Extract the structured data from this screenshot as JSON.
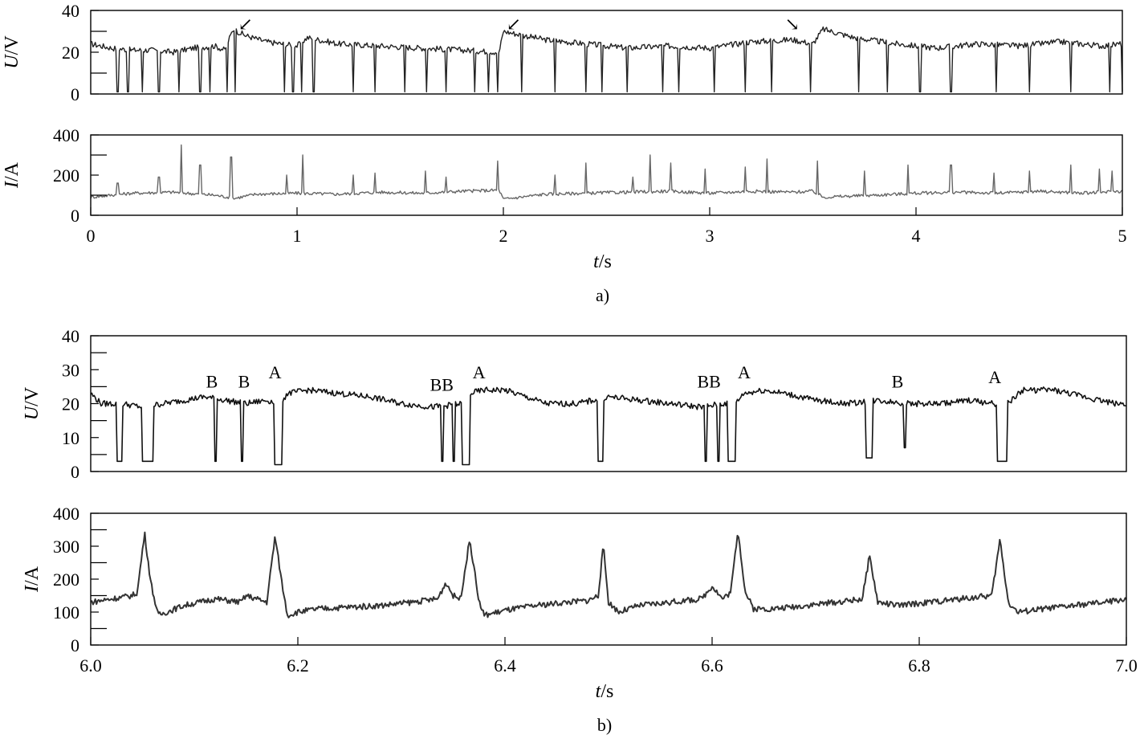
{
  "chart_data": [
    {
      "panel": "a",
      "type": "line",
      "ylabel_prefix": "U",
      "ylabel_suffix": "/V",
      "xlim": [
        0,
        5
      ],
      "ylim": [
        0,
        40
      ],
      "yticks": [
        "0",
        "20",
        "40"
      ],
      "color": "#222222",
      "series": [
        {
          "x": [
            0,
            0.1,
            0.2,
            0.3,
            0.4,
            0.5,
            0.6,
            0.65,
            0.69,
            0.75,
            0.85,
            1.0,
            1.05,
            1.2,
            1.4,
            1.6,
            1.8,
            1.98,
            2.0,
            2.2,
            2.4,
            2.6,
            2.8,
            3.0,
            3.2,
            3.4,
            3.5,
            3.55,
            3.7,
            3.9,
            4.1,
            4.3,
            4.5,
            4.7,
            4.9,
            5.0
          ],
          "y": [
            24,
            22,
            21,
            21,
            20,
            22,
            23,
            21,
            31,
            28,
            25,
            23,
            27,
            24,
            23,
            22,
            21,
            20,
            30,
            26,
            24,
            22,
            23,
            22,
            25,
            26,
            24,
            31,
            27,
            24,
            22,
            24,
            23,
            25,
            23,
            24
          ]
        }
      ],
      "dips_x": [
        0.13,
        0.18,
        0.25,
        0.33,
        0.43,
        0.53,
        0.58,
        0.66,
        0.7,
        0.98,
        1.02,
        0.94,
        1.08,
        1.27,
        1.38,
        1.52,
        1.63,
        1.72,
        1.86,
        1.93,
        1.97,
        2.09,
        2.25,
        2.4,
        2.48,
        2.6,
        2.77,
        2.85,
        3.02,
        3.17,
        3.3,
        3.49,
        3.72,
        3.86,
        4.02,
        4.17,
        4.39,
        4.55,
        4.75,
        4.94,
        5.0
      ],
      "annotations": [
        {
          "text": "↙",
          "x": 0.75,
          "y": 36
        },
        {
          "text": "↙",
          "x": 2.05,
          "y": 36
        },
        {
          "text": "↘",
          "x": 3.4,
          "y": 36
        }
      ]
    },
    {
      "panel": "a",
      "type": "line",
      "ylabel_prefix": "I",
      "ylabel_suffix": "/A",
      "xlim": [
        0,
        5
      ],
      "ylim": [
        0,
        400
      ],
      "yticks": [
        "0",
        "200",
        "400"
      ],
      "xticks": [
        "0",
        "1",
        "2",
        "3",
        "4",
        "5"
      ],
      "xlabel_prefix": "t",
      "xlabel_suffix": "/s",
      "caption": "a)",
      "color": "#666666",
      "series": [
        {
          "x": [
            0,
            0.2,
            0.4,
            0.6,
            0.7,
            0.8,
            1.0,
            1.2,
            1.4,
            1.6,
            1.8,
            1.98,
            2.0,
            2.2,
            2.4,
            2.6,
            2.8,
            3.0,
            3.2,
            3.4,
            3.5,
            3.55,
            3.8,
            4.0,
            4.2,
            4.4,
            4.6,
            4.8,
            5.0
          ],
          "y": [
            90,
            110,
            115,
            100,
            85,
            105,
            110,
            105,
            115,
            110,
            120,
            125,
            80,
            105,
            110,
            115,
            120,
            110,
            120,
            115,
            120,
            90,
            100,
            110,
            115,
            110,
            120,
            110,
            120
          ]
        }
      ],
      "spikes": [
        {
          "x": 0.13,
          "y": 160
        },
        {
          "x": 0.33,
          "y": 190
        },
        {
          "x": 0.44,
          "y": 350
        },
        {
          "x": 0.53,
          "y": 250
        },
        {
          "x": 0.68,
          "y": 290
        },
        {
          "x": 0.95,
          "y": 200
        },
        {
          "x": 1.03,
          "y": 300
        },
        {
          "x": 1.27,
          "y": 200
        },
        {
          "x": 1.38,
          "y": 210
        },
        {
          "x": 1.62,
          "y": 220
        },
        {
          "x": 1.72,
          "y": 190
        },
        {
          "x": 1.97,
          "y": 270
        },
        {
          "x": 2.25,
          "y": 200
        },
        {
          "x": 2.4,
          "y": 260
        },
        {
          "x": 2.63,
          "y": 190
        },
        {
          "x": 2.71,
          "y": 300
        },
        {
          "x": 2.81,
          "y": 260
        },
        {
          "x": 2.98,
          "y": 230
        },
        {
          "x": 3.17,
          "y": 240
        },
        {
          "x": 3.28,
          "y": 280
        },
        {
          "x": 3.52,
          "y": 270
        },
        {
          "x": 3.75,
          "y": 220
        },
        {
          "x": 3.96,
          "y": 250
        },
        {
          "x": 4.17,
          "y": 250
        },
        {
          "x": 4.38,
          "y": 210
        },
        {
          "x": 4.55,
          "y": 220
        },
        {
          "x": 4.75,
          "y": 250
        },
        {
          "x": 4.89,
          "y": 230
        },
        {
          "x": 4.95,
          "y": 220
        }
      ]
    },
    {
      "panel": "b",
      "type": "line",
      "ylabel_prefix": "U",
      "ylabel_suffix": "/V",
      "xlim": [
        6.0,
        7.0
      ],
      "ylim": [
        0,
        40
      ],
      "yticks": [
        "0",
        "10",
        "20",
        "30",
        "40"
      ],
      "color": "#111111",
      "series": [
        {
          "x": [
            6.0,
            6.01,
            6.03,
            6.05,
            6.07,
            6.09,
            6.11,
            6.13,
            6.15,
            6.17,
            6.183,
            6.19,
            6.21,
            6.24,
            6.27,
            6.3,
            6.33,
            6.36,
            6.366,
            6.38,
            6.4,
            6.42,
            6.44,
            6.47,
            6.5,
            6.53,
            6.56,
            6.59,
            6.61,
            6.623,
            6.63,
            6.65,
            6.67,
            6.7,
            6.73,
            6.76,
            6.79,
            6.82,
            6.85,
            6.87,
            6.885,
            6.9,
            6.93,
            6.96,
            6.99,
            7.0
          ],
          "y": [
            23,
            20,
            20,
            19,
            20,
            21,
            22,
            21,
            20,
            21,
            20,
            23,
            24,
            23,
            22,
            20,
            19,
            20,
            23,
            24,
            24,
            22,
            20,
            20,
            22,
            21,
            20,
            19,
            20,
            20,
            23,
            24,
            23,
            21,
            20,
            21,
            20,
            20,
            21,
            20,
            20,
            24,
            24,
            22,
            20,
            20
          ]
        }
      ],
      "dips": [
        {
          "x0": 6.025,
          "x1": 6.03,
          "y": 3
        },
        {
          "x0": 6.05,
          "x1": 6.06,
          "y": 3
        },
        {
          "x0": 6.12,
          "x1": 6.122,
          "y": 3
        },
        {
          "x0": 6.145,
          "x1": 6.147,
          "y": 3
        },
        {
          "x0": 6.177,
          "x1": 6.185,
          "y": 2
        },
        {
          "x0": 6.338,
          "x1": 6.34,
          "y": 3
        },
        {
          "x0": 6.35,
          "x1": 6.352,
          "y": 3
        },
        {
          "x0": 6.358,
          "x1": 6.366,
          "y": 2
        },
        {
          "x0": 6.49,
          "x1": 6.495,
          "y": 3
        },
        {
          "x0": 6.593,
          "x1": 6.595,
          "y": 3
        },
        {
          "x0": 6.605,
          "x1": 6.607,
          "y": 3
        },
        {
          "x0": 6.615,
          "x1": 6.623,
          "y": 3
        },
        {
          "x0": 6.748,
          "x1": 6.755,
          "y": 4
        },
        {
          "x0": 6.785,
          "x1": 6.787,
          "y": 7
        },
        {
          "x0": 6.875,
          "x1": 6.885,
          "y": 3
        }
      ],
      "annotations": [
        {
          "text": "B",
          "x": 6.117,
          "y": 24.7
        },
        {
          "text": "B",
          "x": 6.148,
          "y": 24.7
        },
        {
          "text": "A",
          "x": 6.178,
          "y": 27.4
        },
        {
          "text": "BB",
          "x": 6.339,
          "y": 23.8
        },
        {
          "text": "A",
          "x": 6.375,
          "y": 27.4
        },
        {
          "text": "BB",
          "x": 6.597,
          "y": 24.7
        },
        {
          "text": "A",
          "x": 6.631,
          "y": 27.4
        },
        {
          "text": "B",
          "x": 6.779,
          "y": 24.7
        },
        {
          "text": "A",
          "x": 6.873,
          "y": 26.0
        }
      ]
    },
    {
      "panel": "b",
      "type": "line",
      "ylabel_prefix": "I",
      "ylabel_suffix": "/A",
      "xlim": [
        6.0,
        7.0
      ],
      "ylim": [
        0,
        400
      ],
      "yticks": [
        "0",
        "100",
        "200",
        "300",
        "400"
      ],
      "xticks": [
        "6.0",
        "6.2",
        "6.4",
        "6.6",
        "6.8",
        "7.0"
      ],
      "xlabel_prefix": "t",
      "xlabel_suffix": "/s",
      "caption": "b)",
      "color": "#333333",
      "series": [
        {
          "x": [
            6.0,
            6.02,
            6.04,
            6.045,
            6.052,
            6.058,
            6.065,
            6.09,
            6.12,
            6.145,
            6.15,
            6.17,
            6.178,
            6.185,
            6.19,
            6.2,
            6.22,
            6.25,
            6.28,
            6.31,
            6.335,
            6.343,
            6.35,
            6.357,
            6.366,
            6.375,
            6.38,
            6.4,
            6.43,
            6.46,
            6.48,
            6.49,
            6.495,
            6.5,
            6.51,
            6.53,
            6.56,
            6.59,
            6.6,
            6.61,
            6.618,
            6.625,
            6.632,
            6.64,
            6.66,
            6.69,
            6.72,
            6.745,
            6.752,
            6.76,
            6.78,
            6.81,
            6.84,
            6.87,
            6.878,
            6.886,
            6.895,
            6.92,
            6.95,
            6.98,
            7.0
          ],
          "y": [
            130,
            140,
            150,
            160,
            340,
            190,
            90,
            120,
            140,
            130,
            150,
            130,
            330,
            180,
            90,
            100,
            110,
            115,
            120,
            130,
            140,
            190,
            150,
            140,
            320,
            130,
            90,
            105,
            120,
            130,
            135,
            150,
            300,
            130,
            100,
            120,
            130,
            140,
            180,
            140,
            160,
            350,
            160,
            110,
            110,
            120,
            130,
            140,
            270,
            130,
            120,
            130,
            140,
            150,
            320,
            130,
            100,
            110,
            120,
            130,
            140
          ]
        }
      ]
    }
  ]
}
